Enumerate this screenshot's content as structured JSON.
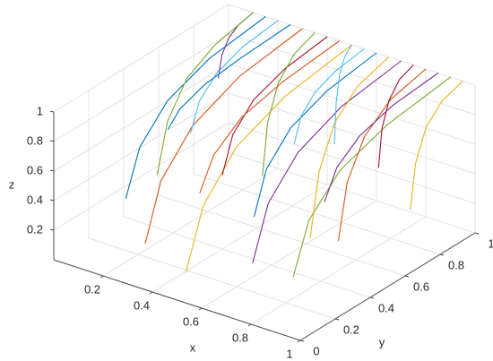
{
  "chart_data": {
    "type": "line3d",
    "xlabel": "x",
    "ylabel": "y",
    "zlabel": "z",
    "xlim": [
      0,
      1
    ],
    "ylim": [
      0,
      1
    ],
    "zlim": [
      0,
      1
    ],
    "xticks": [
      0.2,
      0.4,
      0.6,
      0.8,
      1
    ],
    "yticks": [
      0,
      0.2,
      0.4,
      0.6,
      0.8,
      1
    ],
    "zticks": [
      0.2,
      0.4,
      0.6,
      0.8,
      1
    ],
    "grid": true,
    "series": [
      {
        "color": "#0072bd",
        "x": [
          0.15,
          0.15,
          0.15,
          0.15,
          0.15
        ],
        "y": [
          0.2,
          0.28,
          0.44,
          0.68,
          1
        ],
        "z": [
          0.35,
          0.64,
          0.84,
          0.95,
          1
        ]
      },
      {
        "color": "#d95319",
        "x": [
          0.3,
          0.3,
          0.3,
          0.3,
          0.3
        ],
        "y": [
          0.1,
          0.19,
          0.37,
          0.64,
          1
        ],
        "z": [
          0.2,
          0.56,
          0.8,
          0.94,
          1
        ]
      },
      {
        "color": "#edb120",
        "x": [
          0.5,
          0.5,
          0.5,
          0.5,
          0.5
        ],
        "y": [
          0.05,
          0.15,
          0.34,
          0.62,
          1
        ],
        "z": [
          0.15,
          0.53,
          0.79,
          0.93,
          1
        ]
      },
      {
        "color": "#7e2f8e",
        "x": [
          0.7,
          0.7,
          0.7,
          0.7,
          0.7
        ],
        "y": [
          0.15,
          0.24,
          0.41,
          0.66,
          1
        ],
        "z": [
          0.25,
          0.59,
          0.81,
          0.94,
          1
        ]
      },
      {
        "color": "#77ac30",
        "x": [
          0.9,
          0.9,
          0.9,
          0.9,
          0.9
        ],
        "y": [
          0.1,
          0.19,
          0.37,
          0.64,
          1
        ],
        "z": [
          0.3,
          0.62,
          0.83,
          0.94,
          1
        ]
      },
      {
        "color": "#4dbeee",
        "x": [
          0.2,
          0.2,
          0.2,
          0.2,
          0.2
        ],
        "y": [
          0.5,
          0.55,
          0.65,
          0.8,
          1
        ],
        "z": [
          0.6,
          0.78,
          0.9,
          0.97,
          1
        ]
      },
      {
        "color": "#a2142f",
        "x": [
          0.4,
          0.4,
          0.4,
          0.4,
          0.4
        ],
        "y": [
          0.4,
          0.46,
          0.58,
          0.76,
          1
        ],
        "z": [
          0.5,
          0.73,
          0.88,
          0.96,
          1
        ]
      },
      {
        "color": "#0072bd",
        "x": [
          0.6,
          0.6,
          0.6,
          0.6,
          0.6
        ],
        "y": [
          0.3,
          0.37,
          0.51,
          0.72,
          1
        ],
        "z": [
          0.4,
          0.67,
          0.85,
          0.95,
          1
        ]
      },
      {
        "color": "#d95319",
        "x": [
          0.8,
          0.8,
          0.8,
          0.8,
          0.8
        ],
        "y": [
          0.5,
          0.55,
          0.65,
          0.8,
          1
        ],
        "z": [
          0.2,
          0.56,
          0.8,
          0.94,
          1
        ]
      },
      {
        "color": "#edb120",
        "x": [
          0.95,
          0.95,
          0.95,
          0.95,
          0.95
        ],
        "y": [
          0.7,
          0.73,
          0.79,
          0.88,
          1
        ],
        "z": [
          0.35,
          0.64,
          0.84,
          0.95,
          1
        ]
      },
      {
        "color": "#7e2f8e",
        "x": [
          0.1,
          0.1,
          0.1,
          0.1,
          0.1
        ],
        "y": [
          0.8,
          0.82,
          0.86,
          0.92,
          1
        ],
        "z": [
          0.7,
          0.84,
          0.93,
          0.98,
          1
        ]
      },
      {
        "color": "#77ac30",
        "x": [
          0.35,
          0.35,
          0.35,
          0.35,
          0.35
        ],
        "y": [
          0.7,
          0.73,
          0.79,
          0.88,
          1
        ],
        "z": [
          0.25,
          0.59,
          0.81,
          0.94,
          1
        ]
      },
      {
        "color": "#4dbeee",
        "x": [
          0.55,
          0.55,
          0.55,
          0.55,
          0.55
        ],
        "y": [
          0.6,
          0.64,
          0.72,
          0.84,
          1
        ],
        "z": [
          0.65,
          0.81,
          0.91,
          0.97,
          1
        ]
      },
      {
        "color": "#a2142f",
        "x": [
          0.75,
          0.75,
          0.75,
          0.75,
          0.75
        ],
        "y": [
          0.8,
          0.82,
          0.86,
          0.92,
          1
        ],
        "z": [
          0.45,
          0.7,
          0.86,
          0.96,
          1
        ]
      },
      {
        "color": "#0072bd",
        "x": [
          0.25,
          0.25,
          0.25,
          0.25,
          0.25
        ],
        "y": [
          0.3,
          0.37,
          0.51,
          0.72,
          1
        ],
        "z": [
          0.8,
          0.89,
          0.95,
          0.98,
          1
        ]
      },
      {
        "color": "#d95319",
        "x": [
          0.45,
          0.45,
          0.45,
          0.45,
          0.45
        ],
        "y": [
          0.2,
          0.28,
          0.44,
          0.68,
          1
        ],
        "z": [
          0.55,
          0.75,
          0.89,
          0.96,
          1
        ]
      },
      {
        "color": "#edb120",
        "x": [
          0.65,
          0.65,
          0.65,
          0.65,
          0.65
        ],
        "y": [
          0.55,
          0.6,
          0.69,
          0.82,
          1
        ],
        "z": [
          0.1,
          0.51,
          0.78,
          0.93,
          1
        ]
      },
      {
        "color": "#7e2f8e",
        "x": [
          0.85,
          0.85,
          0.85,
          0.85,
          0.85
        ],
        "y": [
          0.35,
          0.42,
          0.55,
          0.74,
          1
        ],
        "z": [
          0.6,
          0.78,
          0.9,
          0.97,
          1
        ]
      },
      {
        "color": "#77ac30",
        "x": [
          0.1,
          0.1,
          0.1,
          0.1,
          0.1
        ],
        "y": [
          0.45,
          0.51,
          0.62,
          0.78,
          1
        ],
        "z": [
          0.3,
          0.62,
          0.83,
          0.94,
          1
        ]
      },
      {
        "color": "#4dbeee",
        "x": [
          0.5,
          0.5,
          0.5,
          0.5,
          0.5
        ],
        "y": [
          0.9,
          0.91,
          0.93,
          0.96,
          1
        ],
        "z": [
          0.4,
          0.67,
          0.85,
          0.95,
          1
        ]
      }
    ]
  }
}
